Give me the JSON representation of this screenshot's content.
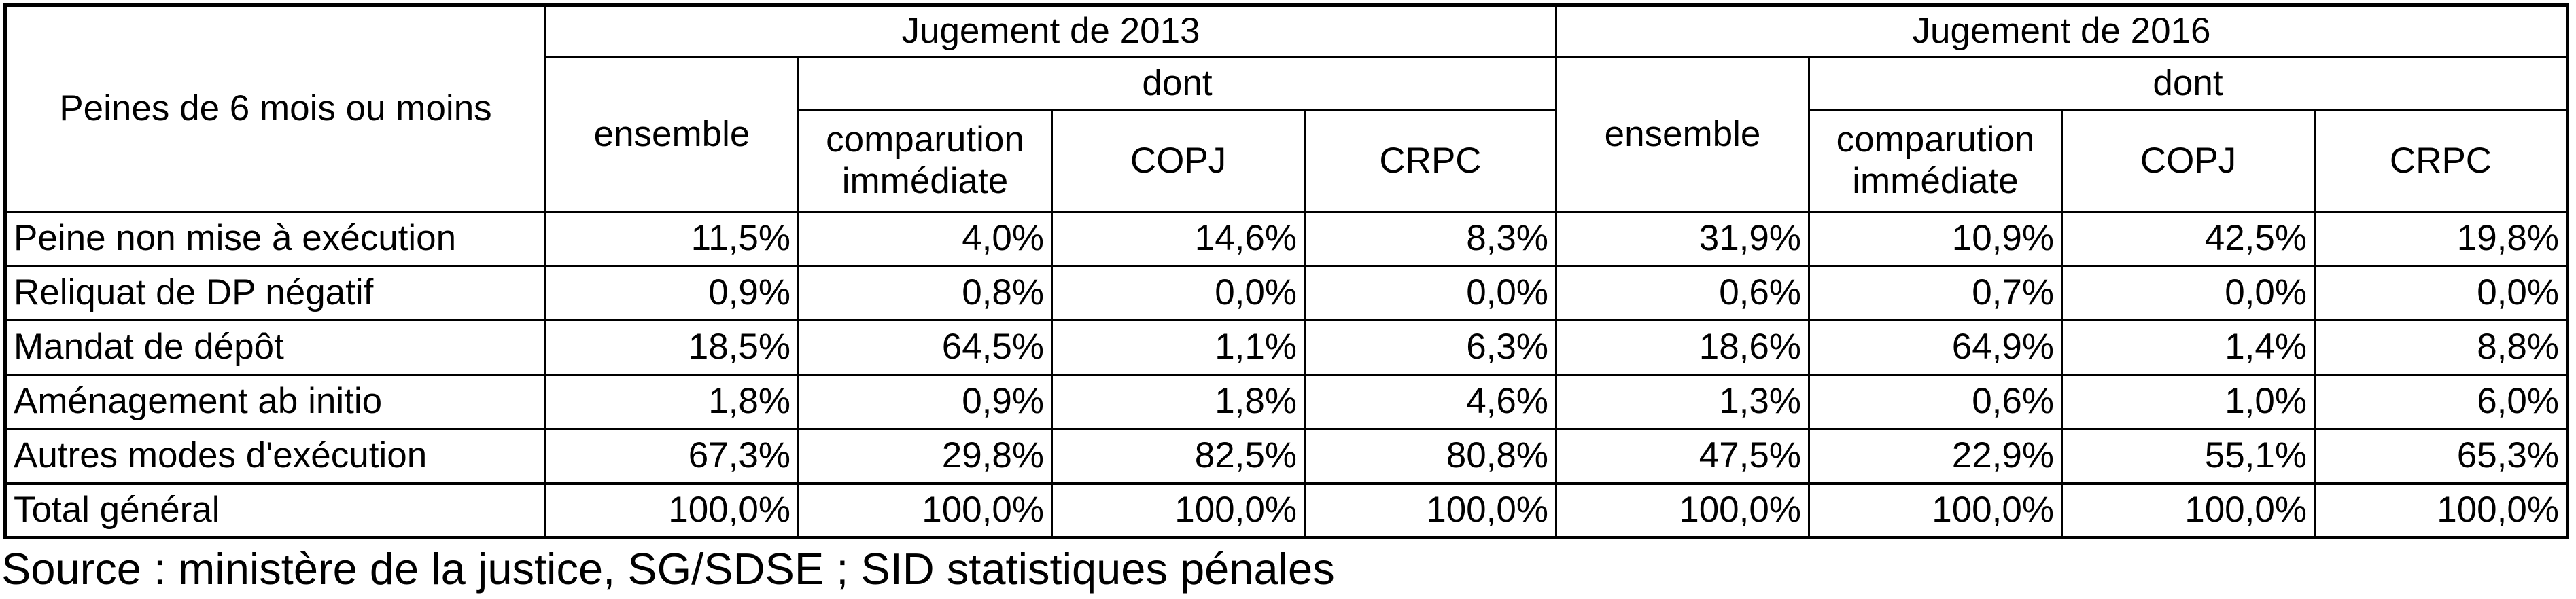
{
  "table": {
    "stub": "Peines de 6 mois ou moins",
    "groups": [
      {
        "label": "Jugement de 2013",
        "overall": "ensemble",
        "sub": "dont",
        "columns": [
          "comparution immédiate",
          "COPJ",
          "CRPC"
        ]
      },
      {
        "label": "Jugement de 2016",
        "overall": "ensemble",
        "sub": "dont",
        "columns": [
          "comparution immédiate",
          "COPJ",
          "CRPC"
        ]
      }
    ],
    "rows": [
      {
        "label": "Peine non mise à exécution",
        "cells": [
          "11,5%",
          "4,0%",
          "14,6%",
          "8,3%",
          "31,9%",
          "10,9%",
          "42,5%",
          "19,8%"
        ]
      },
      {
        "label": "Reliquat de DP négatif",
        "cells": [
          "0,9%",
          "0,8%",
          "0,0%",
          "0,0%",
          "0,6%",
          "0,7%",
          "0,0%",
          "0,0%"
        ]
      },
      {
        "label": "Mandat de dépôt",
        "cells": [
          "18,5%",
          "64,5%",
          "1,1%",
          "6,3%",
          "18,6%",
          "64,9%",
          "1,4%",
          "8,8%"
        ]
      },
      {
        "label": "Aménagement ab initio",
        "cells": [
          "1,8%",
          "0,9%",
          "1,8%",
          "4,6%",
          "1,3%",
          "0,6%",
          "1,0%",
          "6,0%"
        ]
      },
      {
        "label": "Autres modes d'exécution",
        "cells": [
          "67,3%",
          "29,8%",
          "82,5%",
          "80,8%",
          "47,5%",
          "22,9%",
          "55,1%",
          "65,3%"
        ]
      },
      {
        "label": "Total général",
        "cells": [
          "100,0%",
          "100,0%",
          "100,0%",
          "100,0%",
          "100,0%",
          "100,0%",
          "100,0%",
          "100,0%"
        ]
      }
    ]
  },
  "source": "Source : ministère de la justice, SG/SDSE ; SID statistiques pénales"
}
